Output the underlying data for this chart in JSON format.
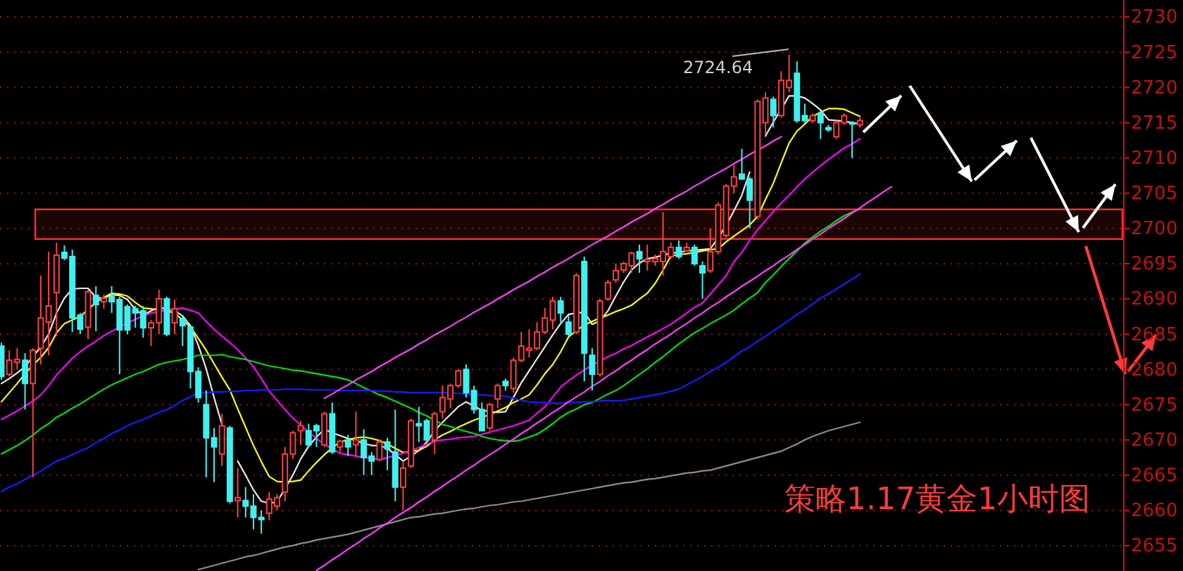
{
  "chart_data": {
    "type": "candlestick",
    "title": "策略1.17黄金1小时图",
    "categories": [
      null,
      null,
      null,
      null,
      null,
      null,
      null,
      null,
      null,
      null,
      null,
      null,
      null,
      null,
      null,
      null,
      null,
      null,
      null,
      null,
      null,
      null,
      null,
      null,
      null,
      null,
      null,
      null,
      null,
      null,
      null,
      null,
      null,
      null,
      null,
      null,
      null,
      null,
      null,
      null,
      null,
      null,
      null,
      null,
      null,
      null,
      null,
      null,
      null,
      null,
      null,
      null,
      null,
      null,
      null,
      null,
      null,
      null,
      null,
      null,
      null,
      null,
      null,
      null,
      null,
      null,
      null,
      null,
      null,
      null,
      null,
      null,
      null,
      null,
      null,
      null,
      null,
      null,
      null,
      null,
      null,
      null,
      null,
      null,
      null,
      null,
      null,
      null,
      null,
      null,
      null,
      null,
      null,
      null,
      null,
      null,
      null,
      null,
      null,
      null,
      null,
      null,
      null,
      null,
      null,
      null,
      null,
      null,
      null,
      null,
      null,
      null,
      null,
      null
    ],
    "ohlc": [
      [
        2683.3,
        2683.8,
        2678.5,
        2679
      ],
      [
        2679.3,
        2682.7,
        2679,
        2681.3
      ],
      [
        2681,
        2683,
        2680,
        2681.4
      ],
      [
        2681.3,
        2682.3,
        2674.3,
        2678
      ],
      [
        2678,
        2683,
        2664.7,
        2682.7
      ],
      [
        2683,
        2693.3,
        2680.7,
        2687.3
      ],
      [
        2686.7,
        2696.7,
        2682,
        2689
      ],
      [
        2690.9,
        2698,
        2684.7,
        2696.2
      ],
      [
        2696.6,
        2697.6,
        2695.5,
        2695.8
      ],
      [
        2696,
        2697,
        2685.3,
        2687.3
      ],
      [
        2687.7,
        2688,
        2685,
        2685.7
      ],
      [
        2686,
        2691.3,
        2684.3,
        2691
      ],
      [
        2690.5,
        2691.8,
        2685.4,
        2689.2
      ],
      [
        2689.6,
        2690.6,
        2688.6,
        2690.1
      ],
      [
        2690.3,
        2691.8,
        2688,
        2689.6
      ],
      [
        2689.9,
        2690.3,
        2679.3,
        2685.6
      ],
      [
        2688.9,
        2689.2,
        2685,
        2685.6
      ],
      [
        2688.6,
        2689,
        2685.9,
        2688
      ],
      [
        2688.3,
        2689,
        2684.5,
        2685.9
      ],
      [
        2685.9,
        2687,
        2683.3,
        2686.6
      ],
      [
        2686.6,
        2691.3,
        2685,
        2690
      ],
      [
        2690,
        2690.3,
        2684.7,
        2685
      ],
      [
        2686.6,
        2689.9,
        2685,
        2688.6
      ],
      [
        2687.2,
        2687.6,
        2683.3,
        2686.2
      ],
      [
        2686,
        2686.3,
        2677.3,
        2679.7
      ],
      [
        2679.7,
        2680.3,
        2675.3,
        2676
      ],
      [
        2675,
        2677,
        2664.7,
        2670.3
      ],
      [
        2670.3,
        2671.7,
        2664,
        2669
      ],
      [
        2668,
        2673.7,
        2666.3,
        2672
      ],
      [
        2671.7,
        2672,
        2661,
        2661.3
      ],
      [
        2661.4,
        2666,
        2659,
        2661.8
      ],
      [
        2661.4,
        2663.3,
        2659,
        2660.6
      ],
      [
        2660.6,
        2662.3,
        2657.3,
        2659
      ],
      [
        2659,
        2660,
        2656.7,
        2658.7
      ],
      [
        2659.6,
        2662.6,
        2658.6,
        2661.6
      ],
      [
        2660.6,
        2662.3,
        2660,
        2661.8
      ],
      [
        2662.6,
        2669,
        2661.3,
        2668
      ],
      [
        2668,
        2671.3,
        2667.3,
        2671
      ],
      [
        2671.3,
        2672.7,
        2669.3,
        2672
      ],
      [
        2671.3,
        2672.3,
        2669,
        2669.3
      ],
      [
        2672,
        2672.3,
        2669,
        2671.3
      ],
      [
        2669.3,
        2674,
        2669,
        2673.7
      ],
      [
        2673.7,
        2675.3,
        2668,
        2668.3
      ],
      [
        2669,
        2670,
        2668.3,
        2669.8
      ],
      [
        2670,
        2670.7,
        2667.7,
        2669
      ],
      [
        2669.3,
        2674,
        2667.7,
        2670
      ],
      [
        2670,
        2671.5,
        2665,
        2667.5
      ],
      [
        2667.7,
        2668.3,
        2665,
        2667
      ],
      [
        2667.2,
        2670,
        2667,
        2669.7
      ],
      [
        2669.7,
        2670.3,
        2665.7,
        2668.7
      ],
      [
        2668.3,
        2674.3,
        2661.3,
        2663.3
      ],
      [
        2663.3,
        2667,
        2660,
        2666
      ],
      [
        2666.3,
        2673,
        2666,
        2672.7
      ],
      [
        2672.3,
        2674.7,
        2669.7,
        2672
      ],
      [
        2672.7,
        2673,
        2669.7,
        2670
      ],
      [
        2670,
        2674,
        2668,
        2673.7
      ],
      [
        2674,
        2677.7,
        2673,
        2676
      ],
      [
        2675.8,
        2678,
        2674.5,
        2677.7
      ],
      [
        2677.7,
        2680,
        2677.4,
        2679.8
      ],
      [
        2680,
        2680.7,
        2676,
        2676.7
      ],
      [
        2677,
        2677.7,
        2673.7,
        2674.3
      ],
      [
        2674.3,
        2675.3,
        2671.3,
        2671.3
      ],
      [
        2671.7,
        2675.3,
        2671.3,
        2675
      ],
      [
        2675.8,
        2678,
        2674.5,
        2677.7
      ],
      [
        2678.3,
        2678.7,
        2677,
        2677.7
      ],
      [
        2677.3,
        2681.7,
        2676.7,
        2681.3
      ],
      [
        2681.3,
        2685.3,
        2681,
        2683.3
      ],
      [
        2682.7,
        2685.7,
        2681.7,
        2683
      ],
      [
        2683,
        2686.7,
        2682.7,
        2685.3
      ],
      [
        2685.3,
        2688.7,
        2685,
        2687.3
      ],
      [
        2687,
        2690.3,
        2685.7,
        2689.7
      ],
      [
        2689.7,
        2690.3,
        2686.7,
        2688
      ],
      [
        2686.7,
        2687.7,
        2684.7,
        2685
      ],
      [
        2685.3,
        2693.7,
        2685,
        2693.3
      ],
      [
        2695.3,
        2696,
        2678.3,
        2682.3
      ],
      [
        2682,
        2683,
        2677,
        2679.3
      ],
      [
        2679.3,
        2690,
        2679,
        2689.7
      ],
      [
        2690,
        2692.7,
        2689.7,
        2692.3
      ],
      [
        2692.7,
        2695,
        2692.3,
        2694
      ],
      [
        2694.1,
        2695.3,
        2693.7,
        2695
      ],
      [
        2694.7,
        2696.7,
        2693.7,
        2696.5
      ],
      [
        2696.7,
        2697.7,
        2693.7,
        2695.7
      ],
      [
        2695.3,
        2697.7,
        2694,
        2695.6
      ],
      [
        2695.3,
        2696.3,
        2694.7,
        2695.7
      ],
      [
        2695.3,
        2702.3,
        2693.3,
        2696.7
      ],
      [
        2696,
        2698,
        2695.7,
        2697.3
      ],
      [
        2697.3,
        2698.3,
        2695.7,
        2696
      ],
      [
        2696.8,
        2698,
        2696.7,
        2697.3
      ],
      [
        2697.3,
        2697.7,
        2694.7,
        2695
      ],
      [
        2694.7,
        2695.3,
        2690,
        2693.7
      ],
      [
        2694,
        2700,
        2693.7,
        2696.7
      ],
      [
        2696.7,
        2703.7,
        2696.3,
        2703.3
      ],
      [
        2699,
        2706.3,
        2698.7,
        2706
      ],
      [
        2706,
        2709,
        2705,
        2707.3
      ],
      [
        2707.7,
        2711.3,
        2707,
        2707
      ],
      [
        2707,
        2707.3,
        2700,
        2704
      ],
      [
        2701.7,
        2718.3,
        2701.3,
        2718
      ],
      [
        2715,
        2719.3,
        2713.3,
        2718.5
      ],
      [
        2718.3,
        2718.7,
        2714.3,
        2716
      ],
      [
        2716,
        2722.3,
        2715.7,
        2721
      ],
      [
        2720,
        2724.64,
        2719.3,
        2721
      ],
      [
        2722,
        2723.7,
        2715,
        2715.3
      ],
      [
        2716,
        2717.7,
        2715,
        2715.3
      ],
      [
        2715.3,
        2716.3,
        2715,
        2716
      ],
      [
        2716.3,
        2716.7,
        2712.7,
        2715
      ],
      [
        2714.3,
        2714.7,
        2713.7,
        2714
      ],
      [
        2713,
        2715.3,
        2712.7,
        2715
      ],
      [
        2715,
        2716.3,
        2714.7,
        2716
      ],
      [
        2715,
        2715.2,
        2710,
        2714.8
      ],
      [
        2714.7,
        2715.7,
        2714.3,
        2715.3
      ],
      null,
      null,
      null,
      null
    ],
    "series": [
      {
        "type": "line",
        "color": "#e8e8e8",
        "values": [
          2678.0,
          2678.7,
          2679.5,
          2680.4,
          2681.8,
          2683.2,
          2685.0,
          2688.0,
          2690.1,
          2691.4,
          2691.5,
          2691.5,
          2690.2,
          2690.1,
          2690.6,
          2690.5,
          2689.9,
          2688.5,
          2687.7,
          2688.3,
          2688.8,
          2688.6,
          2688.3,
          2687.6,
          2686.2,
          2683.4,
          2680.1,
          2676.0,
          2672.2,
          null,
          2667.0,
          2665.0,
          2662.9,
          2661.3,
          2661.0,
          2661.2,
          2663.1,
          2665.0,
          2667.3,
          2669.1,
          2670.4,
          2671.5,
          2671.0,
          2670.6,
          2670.2,
          2669.9,
          2669.5,
          2669.2,
          2669.2,
          2668.8,
          2667.9,
          2667.0,
          2667.7,
          2668.5,
          2669.7,
          2671.3,
          2672.5,
          2673.6,
          2674.7,
          2675.4,
          2674.8,
          2674.2,
          2674.0,
          2673.9,
          2674.0,
          2676.0,
          2678.1,
          2679.8,
          2681.5,
          2683.2,
          2684.9,
          2686.5,
          2687.8,
          2688.0,
          2688.1,
          2686.4,
          2686.9,
          2688.3,
          2690.4,
          2692.4,
          2694.1,
          2695.1,
          2695.7,
          2695.9,
          2696.2,
          2696.5,
          2696.6,
          2696.8,
          2696.9,
          2697.0,
          2697.1,
          2698.7,
          2700.4,
          2702.5,
          2704.7,
          2708.0,
          null,
          2713.1,
          2715.1,
          2716.9,
          2718.8,
          2718.8,
          2718.5,
          2717.7,
          2716.8,
          2715.4,
          2715.3,
          2715.2,
          2715.0,
          2714.8,
          null,
          null,
          null,
          null
        ]
      },
      {
        "type": "line",
        "color": "#ffff00",
        "values": [
          2675.4,
          2676.7,
          2678.0,
          2679.4,
          2680.6,
          2681.7,
          2683.1,
          2685.2,
          2686.5,
          2687.0,
          2687.5,
          2688.5,
          2689.5,
          2690.2,
          2690.8,
          2690.7,
          2690.4,
          2689.5,
          2688.7,
          2688.6,
          2688.4,
          2688.3,
          2688.0,
          2687.0,
          2686.0,
          2684.4,
          2682.7,
          2680.8,
          2678.9,
          2677.1,
          2674.4,
          2671.8,
          2669.2,
          2666.9,
          2664.8,
          2664.1,
          2664.0,
          2664.1,
          2664.3,
          2665.6,
          2666.8,
          2667.9,
          2668.9,
          2669.7,
          2670.0,
          2670.3,
          2670.4,
          2670.2,
          2669.9,
          2669.4,
          2668.8,
          2668.2,
          2668.4,
          2668.5,
          2669.1,
          2670.0,
          2670.7,
          2671.2,
          2671.8,
          2672.3,
          2672.8,
          2673.2,
          2673.6,
          2674.1,
          2674.6,
          2675.3,
          2675.8,
          2676.4,
          2677.8,
          2679.4,
          2680.7,
          2682.5,
          2684.6,
          2685.5,
          2686.3,
          2686.8,
          2687.3,
          2687.7,
          2688.2,
          2688.6,
          2689.1,
          2690.0,
          2690.8,
          2692.2,
          2694.1,
          2696.1,
          2696.3,
          2696.4,
          2696.6,
          2696.8,
          2697.0,
          2697.1,
          2698.1,
          2698.9,
          2699.7,
          2700.5,
          2701.7,
          2704.1,
          2706.4,
          2709.3,
          2712.1,
          2713.8,
          2714.8,
          2715.9,
          2716.5,
          2717.0,
          2717.0,
          2716.9,
          2716.4,
          2715.9,
          null,
          null,
          null,
          null
        ]
      },
      {
        "type": "line",
        "color": "#ff00ff",
        "values": [
          2672.9,
          2673.5,
          2674.1,
          2674.8,
          2675.5,
          2676.4,
          2677.7,
          2679.2,
          2680.4,
          2681.6,
          2682.5,
          2683.3,
          2684.0,
          2684.8,
          2685.4,
          2686.0,
          2686.6,
          2687.1,
          2687.6,
          2688.0,
          2688.2,
          2688.4,
          2688.6,
          2688.7,
          2688.4,
          2688.0,
          2686.8,
          2685.7,
          2684.7,
          2683.8,
          2682.8,
          2681.6,
          2680.4,
          2678.7,
          2676.9,
          2675.6,
          2674.3,
          2673.1,
          2672.1,
          2671.1,
          2670.2,
          2669.4,
          2668.7,
          2668.1,
          2667.9,
          2667.7,
          2667.5,
          2667.4,
          2667.2,
          2667.5,
          2667.8,
          2668.1,
          2668.5,
          2668.9,
          2669.4,
          2669.8,
          2670.0,
          2670.1,
          2670.3,
          2670.4,
          2670.5,
          2670.8,
          2671.1,
          2671.4,
          2671.7,
          2672.0,
          2672.4,
          2672.8,
          2673.8,
          2674.7,
          2676.1,
          2677.5,
          2678.4,
          2679.2,
          2679.9,
          2680.6,
          2681.2,
          2681.8,
          2682.3,
          2682.9,
          2683.4,
          2684.0,
          2684.6,
          2685.2,
          2685.8,
          2686.4,
          2687.2,
          2688.0,
          2688.8,
          2689.4,
          2690.7,
          2692.0,
          2693.3,
          2695.3,
          2696.6,
          2698.3,
          2699.8,
          2701.1,
          2702.4,
          2703.6,
          2704.7,
          2705.9,
          2707.0,
          2708.0,
          2708.9,
          2709.8,
          2710.6,
          2711.4,
          2712.0,
          2712.7,
          null,
          null,
          null,
          null
        ]
      },
      {
        "type": "line",
        "color": "#00e000",
        "values": [
          2668.0,
          2668.6,
          2669.2,
          2669.9,
          2670.7,
          2671.6,
          2672.3,
          2673.2,
          2673.8,
          2674.5,
          2675.1,
          2675.8,
          2676.5,
          2677.2,
          2677.8,
          2678.3,
          2678.8,
          2679.3,
          2679.7,
          2680.2,
          2680.7,
          2681.0,
          2681.2,
          2681.4,
          2681.7,
          2682.0,
          2682.0,
          2682.0,
          2682.1,
          2681.8,
          2681.6,
          2681.4,
          2681.1,
          2680.8,
          2680.5,
          2680.3,
          2680.1,
          2679.9,
          2679.8,
          2679.6,
          2679.4,
          2679.2,
          2679.0,
          2678.8,
          2678.5,
          2678.0,
          2677.4,
          2676.9,
          2676.4,
          2676.0,
          2675.5,
          2675.0,
          2674.5,
          2673.9,
          2673.4,
          2672.8,
          2672.2,
          2671.9,
          2671.5,
          2671.2,
          2670.9,
          2670.5,
          2670.2,
          2670.0,
          2669.9,
          2669.8,
          2670.0,
          2670.4,
          2670.8,
          2671.5,
          2672.3,
          2673.2,
          2673.9,
          2674.4,
          2675.0,
          2675.3,
          2675.9,
          2676.5,
          2677.0,
          2677.7,
          2678.5,
          2679.3,
          2680.1,
          2681.0,
          2681.8,
          2682.7,
          2683.6,
          2684.4,
          2685.2,
          2685.8,
          2686.5,
          2687.1,
          2687.7,
          2688.4,
          2689.3,
          2690.1,
          2690.9,
          2692.3,
          2693.4,
          2694.6,
          2695.7,
          2696.8,
          2697.9,
          2698.8,
          2699.6,
          2700.3,
          2701.1,
          2701.8,
          2702.3,
          2702.8,
          null,
          null,
          null,
          null
        ]
      },
      {
        "type": "line",
        "color": "#1a1aff",
        "values": [
          2662.7,
          2663.3,
          2663.8,
          2664.4,
          2665.0,
          2665.6,
          2666.3,
          2667.0,
          2667.4,
          2667.9,
          2668.4,
          2668.9,
          2669.6,
          2670.2,
          2670.9,
          2671.4,
          2672.0,
          2672.5,
          2672.9,
          2673.4,
          2673.9,
          2674.3,
          2674.9,
          2675.6,
          2676.1,
          2676.7,
          2676.7,
          2676.8,
          2676.8,
          2676.9,
          2676.9,
          2677.0,
          2677.0,
          2677.1,
          2677.1,
          2677.1,
          2677.2,
          2677.2,
          2677.2,
          2677.1,
          2677.1,
          2677.1,
          2677.1,
          2677.0,
          2677.0,
          2677.0,
          2677.0,
          2677.0,
          2676.9,
          2676.9,
          2676.8,
          2676.8,
          2676.7,
          2676.7,
          2676.7,
          2676.7,
          2676.7,
          2676.7,
          2676.6,
          2676.5,
          2676.4,
          2676.4,
          2676.3,
          2676.2,
          2676.2,
          2675.9,
          2675.6,
          2675.4,
          2675.3,
          2675.3,
          2675.2,
          2675.2,
          2675.3,
          2675.3,
          2675.4,
          2675.4,
          2675.5,
          2675.6,
          2675.5,
          2675.6,
          2675.8,
          2676.0,
          2676.2,
          2676.4,
          2676.6,
          2676.9,
          2677.2,
          2677.8,
          2678.4,
          2679.0,
          2679.7,
          2680.3,
          2681.0,
          2681.8,
          2682.6,
          2683.2,
          2684.0,
          2684.7,
          2685.5,
          2686.2,
          2687.0,
          2687.8,
          2688.5,
          2689.3,
          2690.1,
          2690.7,
          2691.4,
          2692.1,
          2692.8,
          2693.5,
          null,
          null,
          null,
          null
        ]
      },
      {
        "type": "line",
        "color": "#8c8c8c",
        "values": [
          null,
          null,
          null,
          null,
          null,
          null,
          null,
          null,
          null,
          null,
          null,
          null,
          null,
          null,
          null,
          null,
          null,
          null,
          null,
          null,
          null,
          null,
          null,
          null,
          null,
          2651.6,
          2651.9,
          2652.2,
          2652.5,
          2652.8,
          2653.1,
          2653.4,
          2653.6,
          2653.9,
          2654.2,
          2654.5,
          2654.8,
          2655.0,
          2655.3,
          2655.5,
          2655.8,
          2656.0,
          2656.2,
          2656.4,
          2656.6,
          2656.9,
          2657.2,
          2657.5,
          2657.8,
          2658.1,
          2658.4,
          2658.7,
          2659.0,
          2659.1,
          2659.3,
          2659.5,
          2659.6,
          2659.8,
          2660.0,
          2660.2,
          2660.3,
          2660.5,
          2660.7,
          2660.8,
          2661.0,
          2661.2,
          2661.3,
          2661.5,
          2661.7,
          2661.9,
          2662.1,
          2662.3,
          2662.5,
          2662.7,
          2662.9,
          2663.1,
          2663.3,
          2663.5,
          2663.7,
          2663.9,
          2664.0,
          2664.2,
          2664.4,
          2664.5,
          2664.7,
          2664.9,
          2665.1,
          2665.3,
          2665.4,
          2665.6,
          2665.7,
          2666.0,
          2666.3,
          2666.6,
          2666.9,
          2667.2,
          2667.5,
          2667.8,
          2668.1,
          2668.4,
          2668.9,
          2669.4,
          2670.0,
          2670.5,
          2670.9,
          2671.3,
          2671.6,
          2671.9,
          2672.2,
          2672.5,
          null,
          null,
          null,
          null
        ]
      },
      {
        "type": "line",
        "color": "#ff40ff",
        "values": [
          null,
          null,
          null,
          null,
          null,
          null,
          null,
          null,
          null,
          null,
          null,
          null,
          null,
          null,
          null,
          null,
          null,
          null,
          null,
          null,
          null,
          null,
          null,
          null,
          null,
          null,
          null,
          null,
          null,
          null,
          null,
          null,
          null,
          null,
          null,
          null,
          null,
          null,
          null,
          null,
          null,
          2675.9,
          2676.5,
          2677.2,
          2677.8,
          2678.5,
          2679.1,
          2679.7,
          2680.4,
          2681.0,
          2681.7,
          2682.3,
          2682.9,
          2683.6,
          2684.2,
          2684.9,
          2685.5,
          2686.1,
          2686.8,
          2687.4,
          2688.1,
          2688.7,
          2689.3,
          2690.0,
          2690.6,
          2691.3,
          2691.9,
          2692.5,
          2693.2,
          2693.8,
          2694.5,
          2695.1,
          2695.7,
          2696.4,
          2697.0,
          2697.7,
          2698.3,
          2698.9,
          2699.6,
          2700.2,
          2700.9,
          2701.5,
          2702.1,
          2702.8,
          2703.4,
          2704.1,
          2704.7,
          2705.3,
          2706.0,
          2706.6,
          2707.3,
          2707.9,
          2708.5,
          2709.2,
          2709.8,
          2710.5,
          2711.1,
          2711.7,
          2712.4,
          2713.0,
          null,
          null,
          null,
          null,
          null,
          null,
          null,
          null,
          null,
          null,
          null,
          null,
          null,
          null
        ]
      },
      {
        "type": "line",
        "color": "#ff40ff",
        "values": [
          null,
          null,
          null,
          null,
          null,
          null,
          null,
          null,
          null,
          null,
          null,
          null,
          null,
          null,
          null,
          null,
          null,
          null,
          null,
          null,
          null,
          null,
          null,
          null,
          null,
          null,
          null,
          null,
          null,
          null,
          null,
          null,
          null,
          null,
          null,
          null,
          null,
          null,
          null,
          null,
          2651.5,
          2652.2,
          2653.0,
          2653.7,
          2654.5,
          2655.2,
          2656.0,
          2656.7,
          2657.5,
          2658.2,
          2659.0,
          2659.7,
          2660.4,
          2661.2,
          2661.9,
          2662.7,
          2663.4,
          2664.2,
          2664.9,
          2665.7,
          2666.4,
          2667.2,
          2667.9,
          2668.6,
          2669.4,
          2670.1,
          2670.9,
          2671.6,
          2672.4,
          2673.1,
          2673.9,
          2674.6,
          2675.4,
          2676.1,
          2676.8,
          2677.6,
          2678.3,
          2679.1,
          2679.8,
          2680.6,
          2681.3,
          2682.1,
          2682.8,
          2683.6,
          2684.3,
          2685.0,
          2685.8,
          2686.5,
          2687.3,
          2688.0,
          2688.8,
          2689.5,
          2690.3,
          2691.0,
          2691.8,
          2692.5,
          2693.2,
          2694.0,
          2694.7,
          2695.5,
          2696.2,
          2697.0,
          2697.7,
          2698.5,
          2699.2,
          2700.0,
          2700.7,
          2701.4,
          2702.2,
          2702.9,
          2703.7,
          2704.4,
          2705.2,
          2705.9
        ]
      }
    ],
    "bands": [
      {
        "axis": "y",
        "from": 2698.5,
        "to": 2702.7,
        "color": "#ff3030"
      }
    ],
    "annotations": [
      "2724.64"
    ],
    "ylim": [
      2651.4,
      2732.4
    ],
    "yticks": [
      2655,
      2660,
      2665,
      2670,
      2675,
      2680,
      2685,
      2690,
      2695,
      2700,
      2705,
      2710,
      2715,
      2720,
      2725,
      2730
    ],
    "grid": "y"
  }
}
